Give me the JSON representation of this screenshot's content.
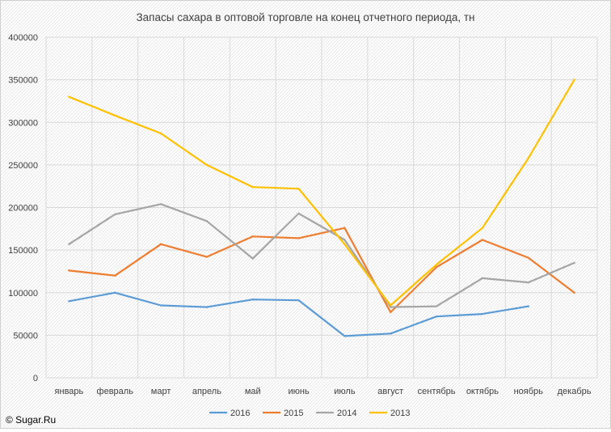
{
  "chart_data": {
    "type": "line",
    "title": "Запасы сахара в оптовой торговле на конец отчетного периода, тн",
    "xlabel": "",
    "ylabel": "",
    "categories": [
      "январь",
      "февраль",
      "март",
      "апрель",
      "май",
      "июнь",
      "июль",
      "август",
      "сентябрь",
      "октябрь",
      "ноябрь",
      "декабрь"
    ],
    "ylim": [
      0,
      400000
    ],
    "yticks": [
      "0",
      "50000",
      "100000",
      "150000",
      "200000",
      "250000",
      "300000",
      "350000",
      "400000"
    ],
    "grid": true,
    "legend_position": "bottom",
    "series": [
      {
        "name": "2016",
        "color": "#5b9bd5",
        "values": [
          90000,
          100000,
          85000,
          83000,
          92000,
          91000,
          49000,
          52000,
          72000,
          75000,
          84000,
          null
        ]
      },
      {
        "name": "2015",
        "color": "#ed7d31",
        "values": [
          126000,
          120000,
          157000,
          142000,
          166000,
          164000,
          176000,
          77000,
          130000,
          162000,
          141000,
          100000
        ]
      },
      {
        "name": "2014",
        "color": "#a5a5a5",
        "values": [
          157000,
          192000,
          204000,
          184000,
          140000,
          193000,
          162000,
          83000,
          84000,
          117000,
          112000,
          135000
        ]
      },
      {
        "name": "2013",
        "color": "#ffc000",
        "values": [
          330000,
          308000,
          287000,
          250000,
          224000,
          222000,
          157000,
          85000,
          133000,
          176000,
          258000,
          350000
        ]
      }
    ]
  },
  "credit": "© Sugar.Ru"
}
